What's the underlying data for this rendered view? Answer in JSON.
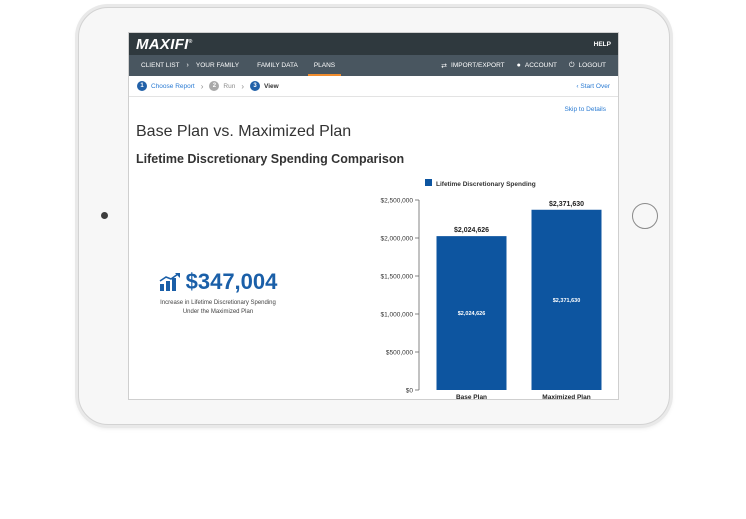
{
  "app": {
    "logo": "MAXIFI",
    "logo_mark": "®",
    "help_label": "HELP"
  },
  "nav": {
    "left": [
      {
        "label": "CLIENT LIST"
      },
      {
        "label": "YOUR FAMILY"
      },
      {
        "label": "FAMILY DATA"
      },
      {
        "label": "PLANS"
      }
    ],
    "breadcrumb_separator": "›",
    "right": [
      {
        "icon": "import-export-icon",
        "glyph": "⇄",
        "label": "IMPORT/EXPORT"
      },
      {
        "icon": "account-icon",
        "glyph": "●",
        "label": "ACCOUNT"
      },
      {
        "icon": "logout-icon",
        "glyph": "⏻",
        "label": "LOGOUT"
      }
    ],
    "active": "PLANS"
  },
  "steps": {
    "items": [
      {
        "num": "1",
        "label": "Choose Report"
      },
      {
        "num": "2",
        "label": "Run"
      },
      {
        "num": "3",
        "label": "View"
      }
    ],
    "chevron": "›",
    "start_over": "‹ Start Over"
  },
  "page": {
    "skip_link": "Skip to Details",
    "title": "Base Plan vs. Maximized Plan",
    "subtitle": "Lifetime Discretionary Spending Comparison"
  },
  "stat": {
    "icon": "bar-chart-trend-icon",
    "value": "$347,004",
    "caption_line1": "Increase in Lifetime Discretionary Spending",
    "caption_line2": "Under the Maximized Plan"
  },
  "colors": {
    "bar": "#0d55a0",
    "accent": "#1a5fa8",
    "nav_active_underline": "#f08c2e",
    "topbar": "#2f393e",
    "navbar": "#495660"
  },
  "chart_data": {
    "type": "bar",
    "categories": [
      "Base Plan",
      "Maximized Plan"
    ],
    "series": [
      {
        "name": "Lifetime Discretionary Spending",
        "values": [
          2024626,
          2371630
        ],
        "labels": [
          "$2,024,626",
          "$2,371,630"
        ]
      }
    ],
    "y_ticks": [
      0,
      500000,
      1000000,
      1500000,
      2000000,
      2500000
    ],
    "y_tick_labels": [
      "$0",
      "$500,000",
      "$1,000,000",
      "$1,500,000",
      "$2,000,000",
      "$2,500,000"
    ],
    "ylim": [
      0,
      2500000
    ],
    "legend": "top",
    "grid": false
  }
}
